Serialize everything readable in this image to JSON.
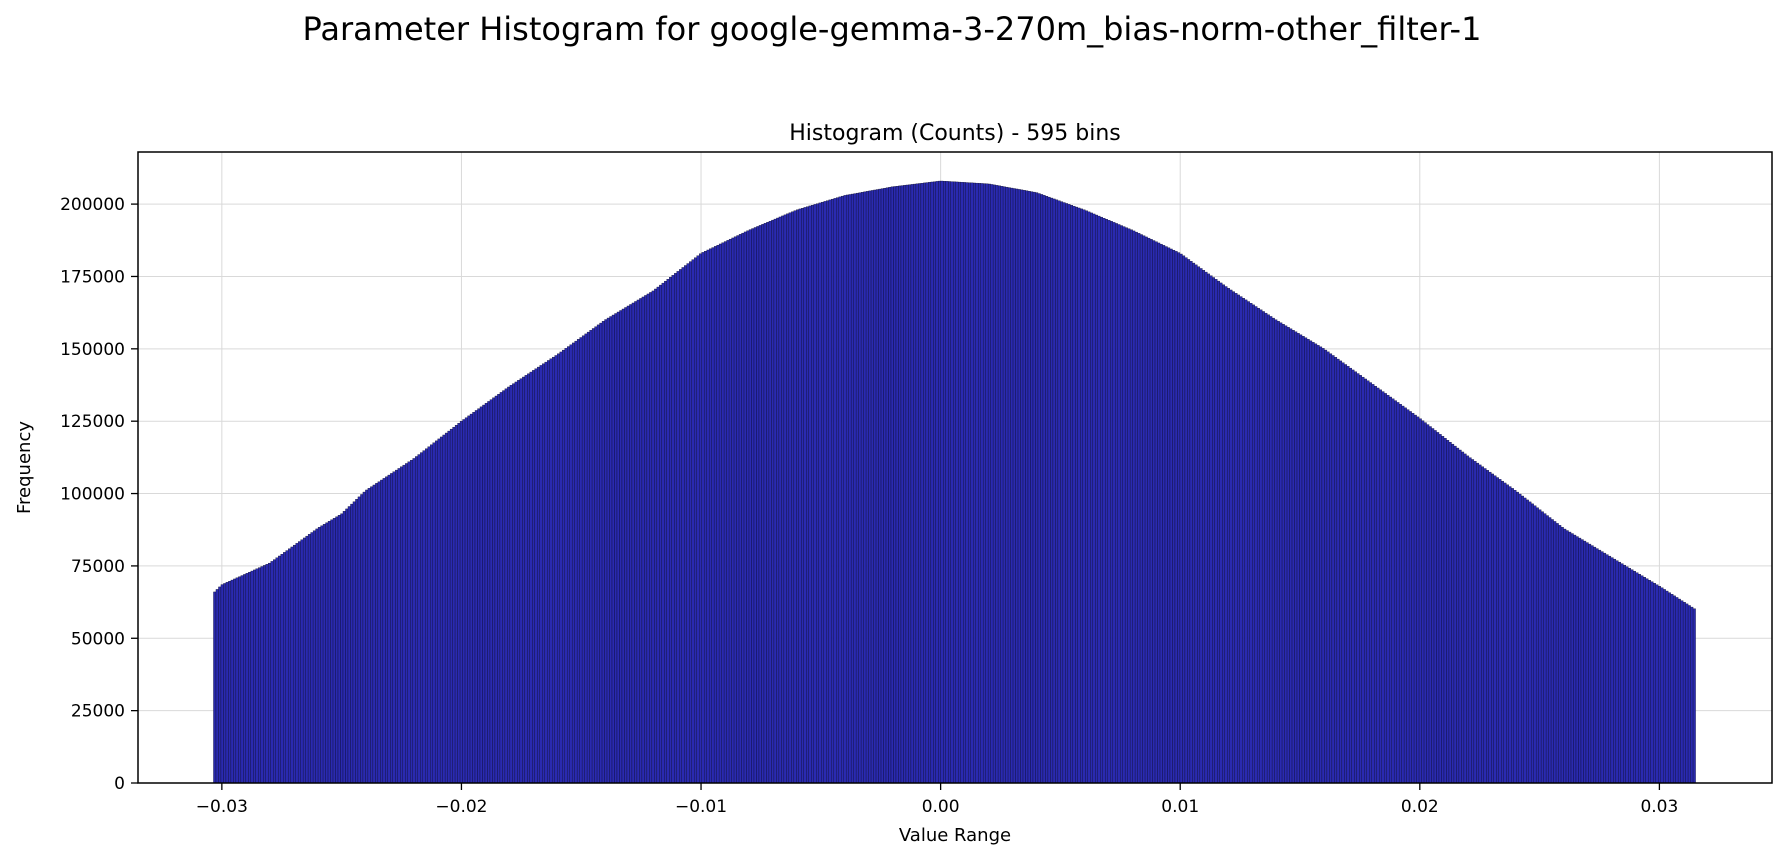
{
  "figure": {
    "suptitle": "Parameter Histogram for google-gemma-3-270m_bias-norm-other_filter-1"
  },
  "chart_data": {
    "type": "bar",
    "title": "Histogram (Counts) - 595 bins",
    "xlabel": "Value Range",
    "ylabel": "Frequency",
    "bins": 595,
    "xlim": [
      -0.0335,
      0.0347
    ],
    "ylim": [
      0,
      218000
    ],
    "grid": true,
    "colors": {
      "bar_fill": "#2a2ab0",
      "bar_edge": "#0a0a2a",
      "grid": "#d9d9d9"
    },
    "x_range": [
      -0.03035,
      0.03151
    ],
    "x_ticks": [
      {
        "value": -0.03,
        "label": "−0.03"
      },
      {
        "value": -0.02,
        "label": "−0.02"
      },
      {
        "value": -0.01,
        "label": "−0.01"
      },
      {
        "value": 0.0,
        "label": "0.00"
      },
      {
        "value": 0.01,
        "label": "0.01"
      },
      {
        "value": 0.02,
        "label": "0.02"
      },
      {
        "value": 0.03,
        "label": "0.03"
      }
    ],
    "y_ticks": [
      {
        "value": 0,
        "label": "0"
      },
      {
        "value": 25000,
        "label": "25000"
      },
      {
        "value": 50000,
        "label": "50000"
      },
      {
        "value": 75000,
        "label": "75000"
      },
      {
        "value": 100000,
        "label": "100000"
      },
      {
        "value": 125000,
        "label": "125000"
      },
      {
        "value": 150000,
        "label": "150000"
      },
      {
        "value": 175000,
        "label": "175000"
      },
      {
        "value": 200000,
        "label": "200000"
      }
    ],
    "profile": [
      {
        "x": -0.0303,
        "y": 66000
      },
      {
        "x": -0.03,
        "y": 68500
      },
      {
        "x": -0.028,
        "y": 76000
      },
      {
        "x": -0.026,
        "y": 88000
      },
      {
        "x": -0.025,
        "y": 93000
      },
      {
        "x": -0.024,
        "y": 101000
      },
      {
        "x": -0.022,
        "y": 112000
      },
      {
        "x": -0.02,
        "y": 125000
      },
      {
        "x": -0.018,
        "y": 137000
      },
      {
        "x": -0.016,
        "y": 148000
      },
      {
        "x": -0.014,
        "y": 160000
      },
      {
        "x": -0.012,
        "y": 170000
      },
      {
        "x": -0.01,
        "y": 183000
      },
      {
        "x": -0.008,
        "y": 191000
      },
      {
        "x": -0.006,
        "y": 198000
      },
      {
        "x": -0.004,
        "y": 203000
      },
      {
        "x": -0.002,
        "y": 206000
      },
      {
        "x": 0.0,
        "y": 208000
      },
      {
        "x": 0.002,
        "y": 207000
      },
      {
        "x": 0.004,
        "y": 204000
      },
      {
        "x": 0.006,
        "y": 198000
      },
      {
        "x": 0.008,
        "y": 191000
      },
      {
        "x": 0.01,
        "y": 183000
      },
      {
        "x": 0.012,
        "y": 171000
      },
      {
        "x": 0.014,
        "y": 160000
      },
      {
        "x": 0.016,
        "y": 150000
      },
      {
        "x": 0.018,
        "y": 138000
      },
      {
        "x": 0.02,
        "y": 126000
      },
      {
        "x": 0.022,
        "y": 113000
      },
      {
        "x": 0.024,
        "y": 101000
      },
      {
        "x": 0.026,
        "y": 88000
      },
      {
        "x": 0.028,
        "y": 78000
      },
      {
        "x": 0.03,
        "y": 68000
      },
      {
        "x": 0.0315,
        "y": 60000
      }
    ]
  }
}
